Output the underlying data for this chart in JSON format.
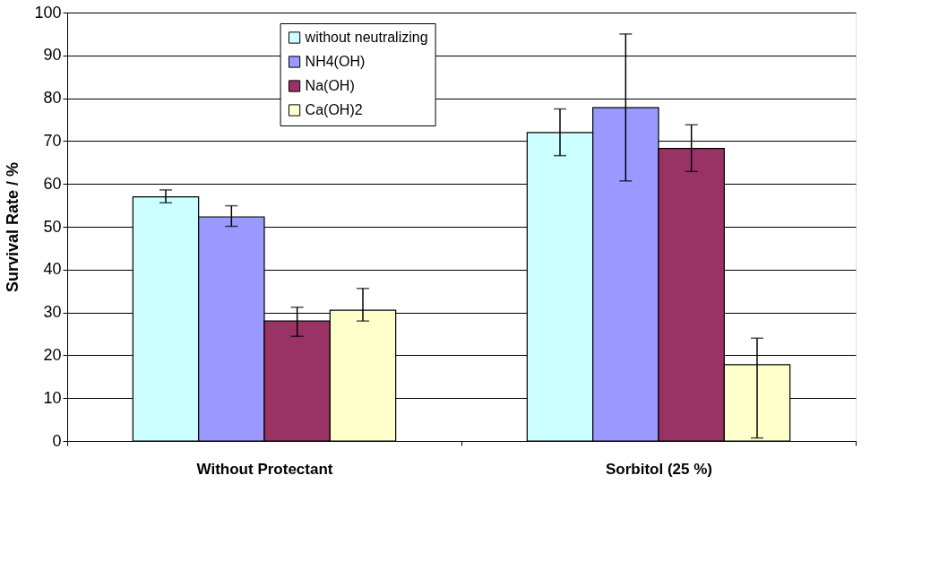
{
  "chart_data": {
    "type": "bar",
    "ylabel": "Survival Rate / %",
    "categories": [
      "Without Protectant",
      "Sorbitol (25 %)"
    ],
    "series": [
      {
        "name": "without neutralizing",
        "color": "#ccffff",
        "values": [
          57.0,
          72.0
        ],
        "errors": [
          [
            55.6,
            58.6
          ],
          [
            66.6,
            77.5
          ]
        ]
      },
      {
        "name": "NH4(OH)",
        "color": "#9999ff",
        "values": [
          52.3,
          77.8
        ],
        "errors": [
          [
            50.1,
            54.9
          ],
          [
            60.7,
            95.0
          ]
        ]
      },
      {
        "name": "Na(OH)",
        "color": "#993366",
        "values": [
          28.0,
          68.3
        ],
        "errors": [
          [
            24.4,
            31.2
          ],
          [
            62.9,
            73.8
          ]
        ]
      },
      {
        "name": "Ca(OH)2",
        "color": "#ffffcc",
        "values": [
          30.5,
          17.8
        ],
        "errors": [
          [
            28.0,
            35.6
          ],
          [
            0.7,
            24.0
          ]
        ]
      }
    ],
    "ylim": [
      0,
      100
    ],
    "yticks": [
      0,
      10,
      20,
      30,
      40,
      50,
      60,
      70,
      80,
      90,
      100
    ],
    "grid": "y",
    "legend": "top"
  }
}
